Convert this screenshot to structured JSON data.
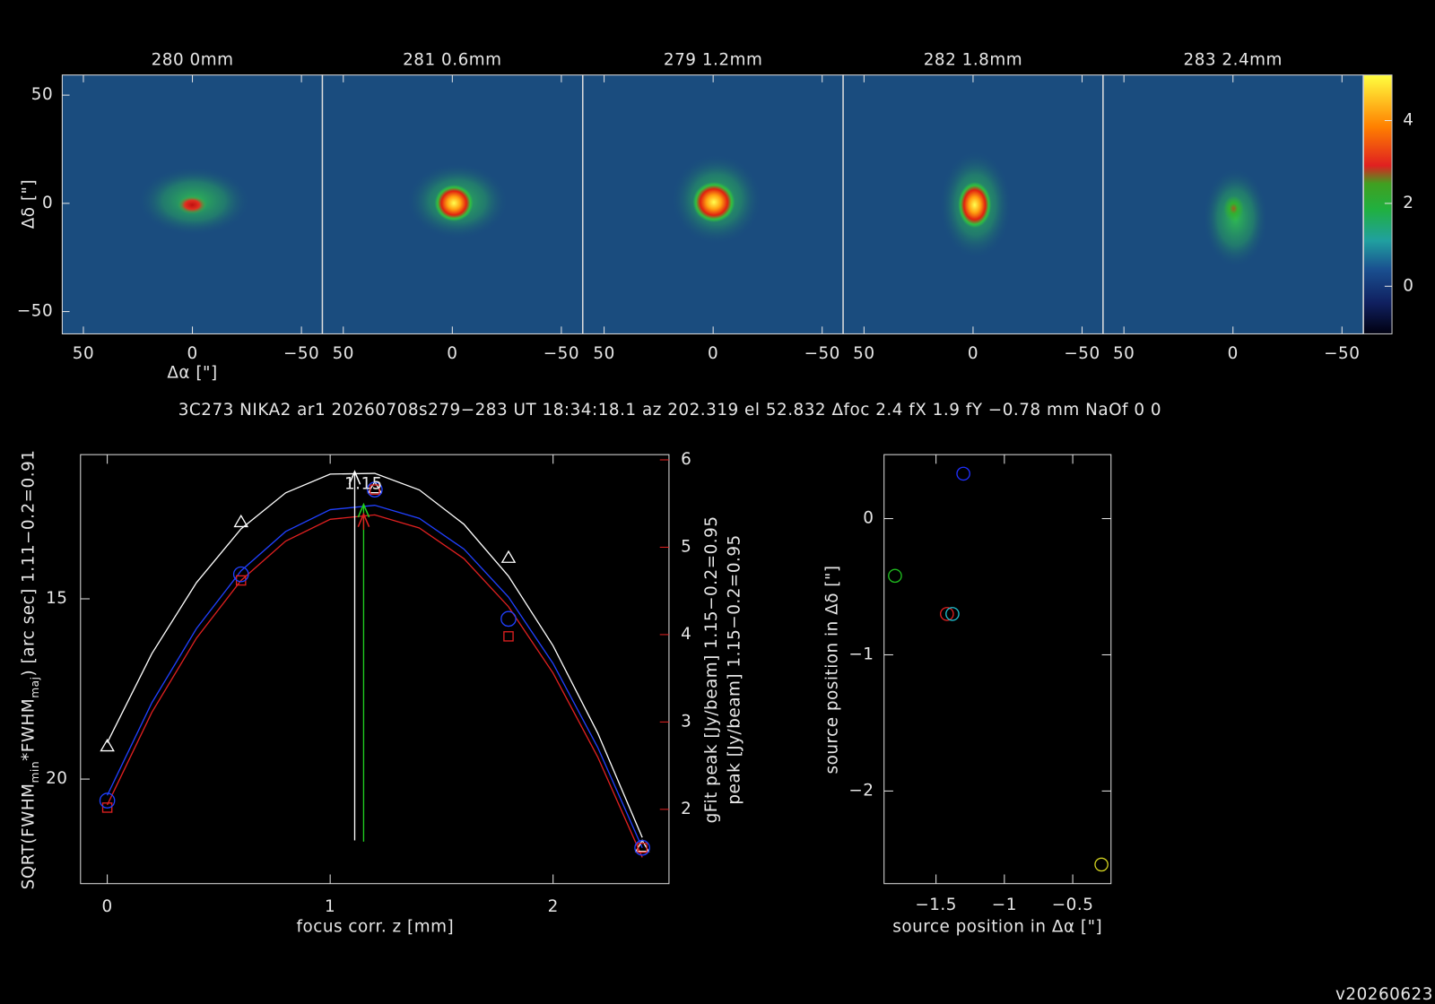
{
  "caption": "3C273 NIKA2 ar1 20260708s279−283 UT 18:34:18.1 az 202.319 el 52.832 Δfoc 2.4 fX 1.9 fY −0.78 mm NaOf 0 0",
  "version": "v20260623",
  "chart_data": [
    {
      "type": "image",
      "title": "280 0mm",
      "xlim": [
        59.7,
        -59.7
      ],
      "ylim": [
        -60.3,
        59.3
      ],
      "xticks": [
        50,
        0,
        {
          "value": -50,
          "label": "−50"
        }
      ],
      "yticks": [
        50,
        0,
        {
          "value": -50,
          "label": "−50"
        }
      ],
      "xlabel": "Δα [\"]",
      "ylabel": "Δδ [\"]"
    },
    {
      "type": "image",
      "title": "281 0.6mm",
      "xlim": [
        59.7,
        -59.7
      ],
      "ylim": [
        -60.3,
        59.3
      ],
      "xticks": [
        50,
        0,
        {
          "value": -50,
          "label": "−50"
        }
      ]
    },
    {
      "type": "image",
      "title": "279 1.2mm",
      "xlim": [
        59.7,
        -59.7
      ],
      "ylim": [
        -60.3,
        59.3
      ],
      "xticks": [
        50,
        0,
        {
          "value": -50,
          "label": "−50"
        }
      ]
    },
    {
      "type": "image",
      "title": "282 1.8mm",
      "xlim": [
        59.7,
        -59.7
      ],
      "ylim": [
        -60.3,
        59.3
      ],
      "xticks": [
        50,
        0,
        {
          "value": -50,
          "label": "−50"
        }
      ]
    },
    {
      "type": "image",
      "title": "283 2.4mm",
      "xlim": [
        59.7,
        -59.7
      ],
      "ylim": [
        -60.3,
        59.3
      ],
      "xticks": [
        50,
        0,
        {
          "value": -50,
          "label": "−50"
        }
      ]
    },
    {
      "type": "colorbar",
      "ylim": [
        -1.15,
        5.1
      ],
      "yticks": [
        0,
        2,
        4
      ]
    },
    {
      "type": "focus",
      "xlabel": "focus corr. z [mm]",
      "ylabel": [
        "SQRT(FWHM",
        "min",
        "*FWHM",
        "maj",
        ") [arc sec] 1.11−0.2=0.91"
      ],
      "y2labels": [
        {
          "text": "gFit peak [Jy/beam] 1.15−0.2=0.95",
          "color": "#e02020"
        },
        {
          "text": "peak [Jy/beam] 1.15−0.2=0.95",
          "color": "#20d020"
        }
      ],
      "xlim": [
        -0.12,
        2.52
      ],
      "xticks": [
        0,
        1,
        2
      ],
      "ylim": [
        22.9,
        11
      ],
      "yticks": [
        15,
        20
      ],
      "y2lim": [
        1.15,
        6.06
      ],
      "y2ticks": [
        2,
        3,
        4,
        5,
        6
      ],
      "y2color": "#e02020",
      "series": [
        {
          "color": "#ffffff",
          "axis": "y",
          "line": true,
          "x": [
            0,
            0.2,
            0.4,
            0.6,
            0.8,
            1.0,
            1.2,
            1.4,
            1.6,
            1.8,
            2.0,
            2.2,
            2.4
          ],
          "values": [
            18.99,
            16.52,
            14.55,
            13.06,
            12.06,
            11.54,
            11.52,
            11.98,
            12.93,
            14.37,
            16.3,
            18.72,
            21.62
          ]
        },
        {
          "color": "#2040ff",
          "axis": "y2",
          "line": true,
          "x": [
            0,
            0.2,
            0.4,
            0.6,
            0.8,
            1.0,
            1.2,
            1.4,
            1.6,
            1.8,
            2.0,
            2.2,
            2.4
          ],
          "values": [
            2.16,
            3.22,
            4.07,
            4.73,
            5.18,
            5.43,
            5.48,
            5.33,
            4.98,
            4.43,
            3.67,
            2.71,
            1.56
          ]
        },
        {
          "color": "#e02020",
          "axis": "y2",
          "line": true,
          "x": [
            0,
            0.2,
            0.4,
            0.6,
            0.8,
            1.0,
            1.2,
            1.4,
            1.6,
            1.8,
            2.0,
            2.2,
            2.4
          ],
          "values": [
            2.05,
            3.11,
            3.96,
            4.62,
            5.07,
            5.32,
            5.37,
            5.22,
            4.87,
            4.32,
            3.56,
            2.6,
            1.45
          ]
        },
        {
          "color": "#ffffff",
          "axis": "y",
          "marker": "triangle",
          "x": [
            0,
            0.6,
            1.2,
            1.8,
            2.4
          ],
          "values": [
            19.09,
            12.87,
            11.93,
            13.86,
            21.88
          ]
        },
        {
          "color": "#e02020",
          "axis": "y2",
          "marker": "square",
          "x": [
            0,
            0.6,
            1.2,
            1.8,
            2.4
          ],
          "values": [
            2.02,
            4.62,
            5.66,
            3.98,
            1.56
          ]
        },
        {
          "color": "#2040ff",
          "axis": "y2",
          "marker": "circle",
          "x": [
            0,
            0.6,
            1.2,
            1.8,
            2.4
          ],
          "values": [
            2.1,
            4.69,
            5.66,
            4.18,
            1.56
          ]
        }
      ],
      "arrows": [
        {
          "color": "#ffffff",
          "axis": "y",
          "x": 1.11,
          "from": 21.7,
          "to": 11.47
        },
        {
          "color": "#20d020",
          "axis": "y2",
          "x": 1.15,
          "from": 1.63,
          "to": 5.49
        },
        {
          "color": "#e02020",
          "axis": "y2",
          "x": 1.15,
          "from": 5.2,
          "to": 5.38
        }
      ],
      "annotation": {
        "text": "1.15",
        "x": 1.15,
        "y": 5.72,
        "axis": "y2",
        "color": "#20d020"
      }
    },
    {
      "type": "scatter",
      "xlabel": "source position in Δα [\"]",
      "ylabel": "source position in Δδ [\"]",
      "xlim": [
        -1.88,
        -0.22
      ],
      "ylim": [
        -2.68,
        0.47
      ],
      "xticks": [
        {
          "value": -1.5,
          "label": "−1.5"
        },
        {
          "value": -1,
          "label": "−1"
        },
        {
          "value": -0.5,
          "label": "−0.5"
        }
      ],
      "yticks": [
        0,
        {
          "value": -1,
          "label": "−1"
        },
        {
          "value": -2,
          "label": "−2"
        }
      ],
      "series": [
        {
          "color": "#2030ff",
          "x": [
            -1.3
          ],
          "values": [
            0.33
          ]
        },
        {
          "color": "#20c020",
          "x": [
            -1.8
          ],
          "values": [
            -0.42
          ]
        },
        {
          "color": "#e02020",
          "x": [
            -1.42
          ],
          "values": [
            -0.7
          ]
        },
        {
          "color": "#20c0d0",
          "x": [
            -1.38
          ],
          "values": [
            -0.7
          ]
        },
        {
          "color": "#d0d020",
          "x": [
            -0.29
          ],
          "values": [
            -2.54
          ]
        }
      ]
    }
  ]
}
